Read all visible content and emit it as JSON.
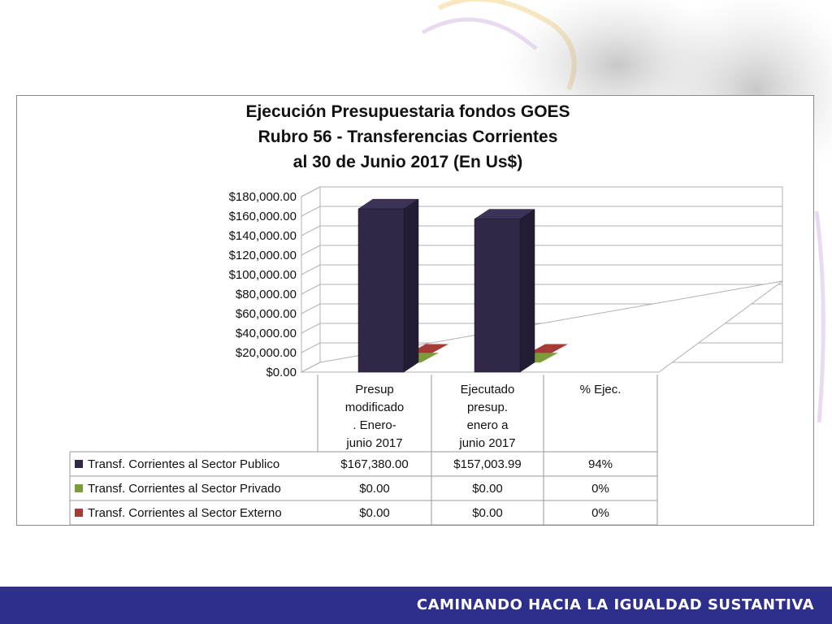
{
  "slide": {
    "footer_slogan": "CAMINANDO HACIA LA IGUALDAD SUSTANTIVA"
  },
  "colors": {
    "series_publico": "#312746",
    "series_privado": "#7c9c3c",
    "series_externo": "#a53b37",
    "footer_bar": "#2e2f8c"
  },
  "chart_data": {
    "type": "bar",
    "title_lines": [
      "Ejecución Presupuestaria fondos GOES",
      "Rubro 56 - Transferencias Corrientes",
      "al 30 de Junio 2017 (En Us$)"
    ],
    "categories": [
      [
        "Presup",
        "modificado",
        ". Enero-",
        "junio 2017"
      ],
      [
        "Ejecutado",
        "presup.",
        "enero a",
        "junio 2017"
      ],
      [
        "% Ejec."
      ]
    ],
    "y_ticks": [
      "$180,000.00",
      "$160,000.00",
      "$140,000.00",
      "$120,000.00",
      "$100,000.00",
      "$80,000.00",
      "$60,000.00",
      "$40,000.00",
      "$20,000.00",
      "$0.00"
    ],
    "ylim": [
      0,
      180000
    ],
    "grid": true,
    "legend": "data-table-below",
    "series": [
      {
        "name": "Transf. Corrientes al Sector Publico",
        "values": [
          167380.0,
          157003.99,
          0.94
        ],
        "labels": [
          "$167,380.00",
          "$157,003.99",
          "94%"
        ]
      },
      {
        "name": "Transf. Corrientes al Sector Privado",
        "values": [
          0,
          0,
          0
        ],
        "labels": [
          "$0.00",
          "$0.00",
          "0%"
        ]
      },
      {
        "name": "Transf. Corrientes al Sector Externo",
        "values": [
          0,
          0,
          0
        ],
        "labels": [
          "$0.00",
          "$0.00",
          "0%"
        ]
      }
    ]
  }
}
